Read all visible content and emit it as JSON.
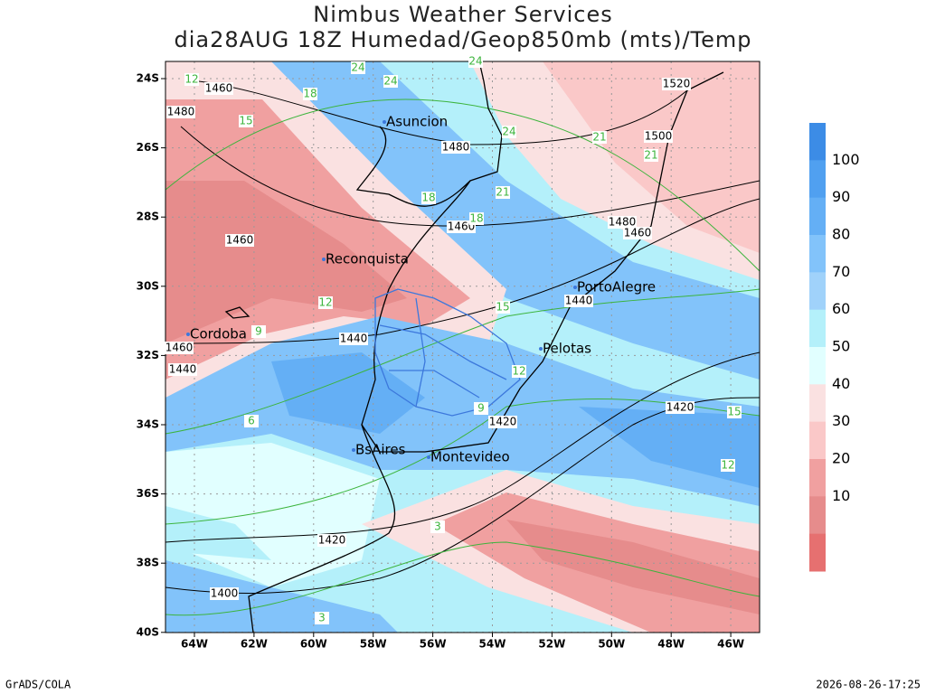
{
  "header": {
    "title": "Nimbus Weather Services",
    "subtitle": "dia28AUG 18Z Humedad/Geop850mb (mts)/Temp"
  },
  "map": {
    "lat_labels": [
      "24S",
      "26S",
      "28S",
      "30S",
      "32S",
      "34S",
      "36S",
      "38S",
      "40S"
    ],
    "lon_labels": [
      "64W",
      "62W",
      "60W",
      "58W",
      "56W",
      "54W",
      "52W",
      "50W",
      "48W",
      "46W"
    ],
    "cities": [
      "Asuncion",
      "Reconquista",
      "Cordoba",
      "PortoAlegre",
      "Pelotas",
      "BsAires",
      "Montevideo"
    ],
    "geopotential_labels": [
      "1460",
      "1480",
      "1480",
      "1500",
      "1520",
      "1460",
      "1460",
      "1480",
      "1460",
      "1440",
      "1440",
      "1460",
      "1440",
      "1420",
      "1420",
      "1420",
      "1400"
    ],
    "temperature_labels": [
      "24",
      "24",
      "24",
      "18",
      "15",
      "12",
      "21",
      "24",
      "18",
      "21",
      "21",
      "18",
      "12",
      "15",
      "12",
      "9",
      "6",
      "3",
      "3",
      "15",
      "12",
      "9"
    ]
  },
  "colorbar": {
    "labels": [
      "100",
      "90",
      "80",
      "70",
      "60",
      "50",
      "40",
      "30",
      "20",
      "10"
    ]
  },
  "footer": {
    "left": "GrADS/COLA",
    "right": "2026-08-26-17:25"
  }
}
